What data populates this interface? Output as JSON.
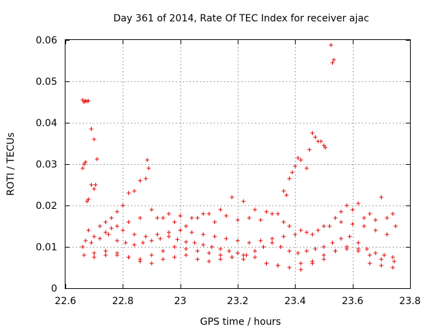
{
  "colors": {
    "point": "#e00000",
    "grid": "#a0a0a0",
    "axis": "#000000"
  },
  "chart_data": {
    "type": "scatter",
    "title": "Day 361 of 2014, Rate Of TEC Index for receiver ajac",
    "xlabel": "GPS time / hours",
    "ylabel": "ROTI / TECUs",
    "xlim": [
      22.6,
      23.8
    ],
    "ylim": [
      0,
      0.06
    ],
    "xticks": [
      22.6,
      22.8,
      23.0,
      23.2,
      23.4,
      23.6,
      23.8
    ],
    "xtick_labels": [
      "22.6",
      "22.8",
      "23",
      "23.2",
      "23.4",
      "23.6",
      "23.8"
    ],
    "yticks": [
      0,
      0.01,
      0.02,
      0.03,
      0.04,
      0.05,
      0.06
    ],
    "ytick_labels": [
      "0",
      "0.01",
      "0.02",
      "0.03",
      "0.04",
      "0.05",
      "0.06"
    ],
    "grid": true,
    "marker": "+",
    "series": [
      {
        "name": "ROTI",
        "x": [
          22.66,
          22.665,
          22.67,
          22.675,
          22.68,
          22.69,
          22.7,
          22.705,
          22.71,
          22.66,
          22.665,
          22.67,
          22.675,
          22.68,
          22.69,
          22.7,
          22.72,
          22.74,
          22.76,
          22.78,
          22.8,
          22.82,
          22.84,
          22.86,
          22.88,
          22.885,
          22.89,
          22.67,
          22.7,
          22.74,
          22.78,
          22.82,
          22.86,
          22.9,
          22.94,
          22.98,
          23.02,
          23.06,
          23.1,
          23.14,
          23.18,
          23.22,
          23.26,
          23.3,
          23.34,
          23.38,
          23.42,
          23.46,
          23.5,
          23.54,
          23.58,
          23.62,
          23.66,
          23.7,
          23.74,
          22.66,
          22.69,
          22.72,
          22.75,
          22.78,
          22.81,
          22.84,
          22.87,
          22.9,
          22.93,
          22.96,
          22.99,
          23.02,
          23.05,
          23.08,
          23.11,
          23.14,
          23.17,
          23.2,
          23.23,
          23.26,
          23.29,
          23.32,
          23.35,
          23.38,
          23.41,
          23.44,
          23.47,
          23.5,
          23.53,
          23.56,
          23.59,
          23.62,
          23.65,
          23.68,
          23.71,
          23.74,
          22.665,
          22.7,
          22.74,
          22.78,
          22.82,
          22.86,
          22.9,
          22.94,
          22.98,
          23.02,
          23.06,
          23.1,
          23.14,
          23.18,
          23.22,
          23.26,
          23.3,
          23.34,
          23.38,
          23.42,
          23.46,
          23.5,
          23.54,
          23.58,
          23.62,
          23.66,
          23.7,
          23.745,
          22.68,
          22.72,
          22.76,
          22.8,
          22.84,
          22.88,
          22.92,
          22.96,
          23.0,
          23.04,
          23.08,
          23.12,
          23.16,
          23.2,
          23.24,
          23.28,
          23.32,
          23.36,
          23.4,
          23.44,
          23.48,
          23.52,
          23.56,
          23.6,
          23.64,
          23.68,
          23.72,
          22.7,
          22.74,
          22.78,
          22.82,
          22.86,
          22.9,
          22.94,
          22.98,
          23.02,
          23.06,
          23.1,
          23.14,
          23.18,
          23.22,
          23.26,
          23.3,
          23.34,
          23.38,
          23.42,
          23.46,
          23.5,
          23.54,
          23.58,
          23.62,
          23.66,
          23.7,
          23.74,
          23.36,
          23.37,
          23.38,
          23.39,
          23.4,
          23.41,
          23.42,
          23.44,
          23.45,
          23.46,
          23.47,
          23.48,
          23.49,
          23.5,
          23.505,
          23.525,
          23.53,
          23.535,
          22.92,
          22.96,
          23.0,
          23.04,
          23.08,
          23.12,
          23.16,
          23.2,
          23.24,
          23.28,
          23.32,
          23.36,
          23.56,
          23.6,
          23.64,
          23.68,
          23.72,
          23.75
        ],
        "y": [
          0.0455,
          0.045,
          0.0453,
          0.0452,
          0.0453,
          0.0385,
          0.036,
          0.025,
          0.0312,
          0.029,
          0.03,
          0.0305,
          0.021,
          0.0215,
          0.025,
          0.024,
          0.015,
          0.016,
          0.017,
          0.0185,
          0.02,
          0.023,
          0.0235,
          0.026,
          0.0265,
          0.031,
          0.029,
          0.0115,
          0.0125,
          0.0135,
          0.015,
          0.016,
          0.017,
          0.019,
          0.017,
          0.016,
          0.015,
          0.017,
          0.018,
          0.019,
          0.022,
          0.021,
          0.019,
          0.0185,
          0.018,
          0.015,
          0.014,
          0.013,
          0.015,
          0.017,
          0.02,
          0.0205,
          0.018,
          0.022,
          0.018,
          0.01,
          0.011,
          0.012,
          0.013,
          0.0115,
          0.011,
          0.0105,
          0.011,
          0.0115,
          0.012,
          0.0125,
          0.0118,
          0.0112,
          0.011,
          0.0105,
          0.01,
          0.0095,
          0.009,
          0.0085,
          0.008,
          0.009,
          0.01,
          0.011,
          0.01,
          0.009,
          0.0085,
          0.009,
          0.0095,
          0.01,
          0.011,
          0.012,
          0.0125,
          0.011,
          0.0095,
          0.0085,
          0.008,
          0.0075,
          0.008,
          0.0085,
          0.009,
          0.008,
          0.0075,
          0.007,
          0.008,
          0.009,
          0.01,
          0.0095,
          0.009,
          0.0085,
          0.008,
          0.0075,
          0.007,
          0.0075,
          0.006,
          0.0055,
          0.005,
          0.006,
          0.0065,
          0.008,
          0.009,
          0.01,
          0.0095,
          0.008,
          0.007,
          0.0065,
          0.014,
          0.015,
          0.0145,
          0.014,
          0.013,
          0.0125,
          0.013,
          0.0135,
          0.014,
          0.0135,
          0.013,
          0.0125,
          0.012,
          0.0115,
          0.011,
          0.0115,
          0.012,
          0.0125,
          0.013,
          0.0135,
          0.014,
          0.015,
          0.016,
          0.0155,
          0.015,
          0.014,
          0.013,
          0.0075,
          0.008,
          0.0085,
          0.0075,
          0.0065,
          0.006,
          0.007,
          0.0075,
          0.008,
          0.007,
          0.0065,
          0.007,
          0.0075,
          0.008,
          0.0075,
          0.006,
          0.0055,
          0.005,
          0.0045,
          0.006,
          0.007,
          0.009,
          0.0095,
          0.009,
          0.006,
          0.0055,
          0.005,
          0.0235,
          0.0225,
          0.0265,
          0.028,
          0.0295,
          0.0315,
          0.031,
          0.029,
          0.0335,
          0.0375,
          0.0365,
          0.0355,
          0.0355,
          0.0345,
          0.034,
          0.0588,
          0.0545,
          0.0552,
          0.017,
          0.018,
          0.0175,
          0.017,
          0.018,
          0.016,
          0.0175,
          0.0165,
          0.017,
          0.0165,
          0.018,
          0.016,
          0.0185,
          0.019,
          0.017,
          0.0165,
          0.017,
          0.015
        ]
      }
    ]
  }
}
